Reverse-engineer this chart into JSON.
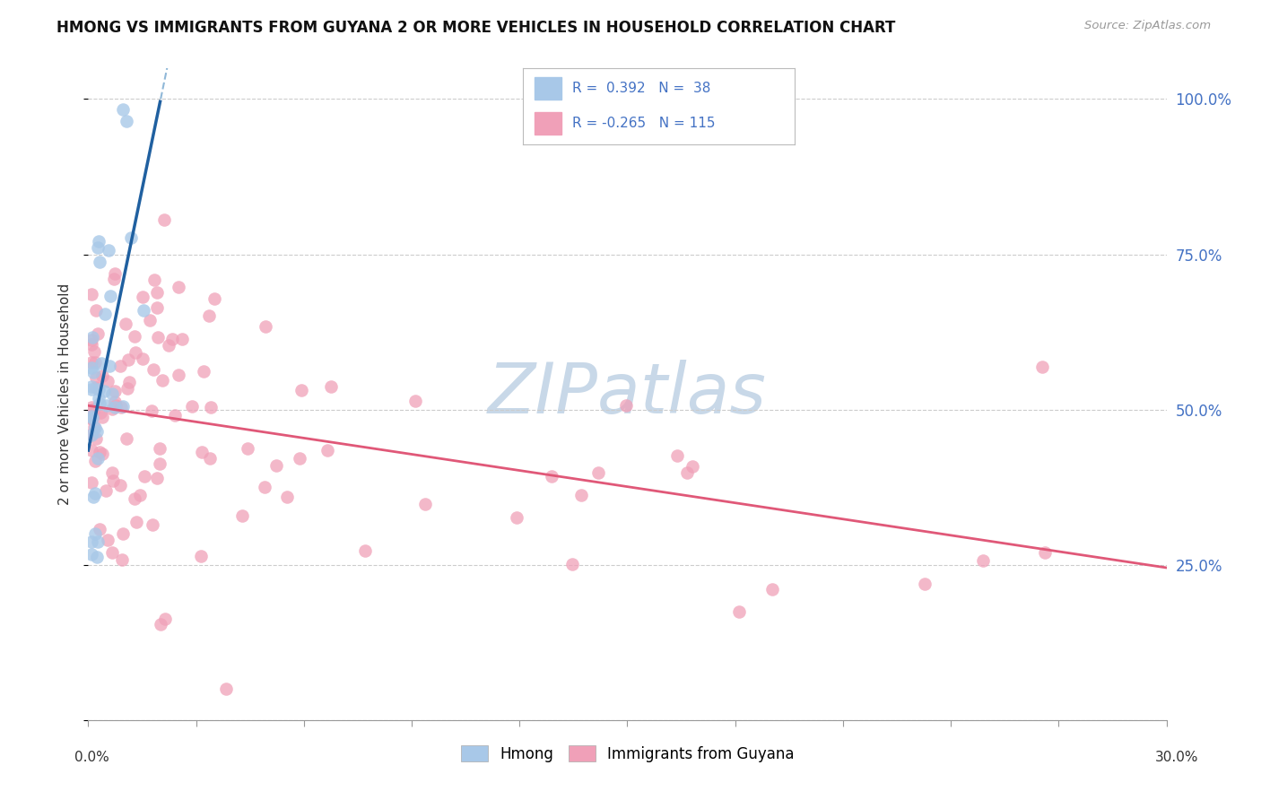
{
  "title": "HMONG VS IMMIGRANTS FROM GUYANA 2 OR MORE VEHICLES IN HOUSEHOLD CORRELATION CHART",
  "source": "Source: ZipAtlas.com",
  "ylabel": "2 or more Vehicles in Household",
  "blue_color": "#A8C8E8",
  "blue_line_solid": "#2060A0",
  "blue_line_dash": "#90B8D8",
  "pink_color": "#F0A0B8",
  "pink_line_color": "#E05878",
  "watermark_color": "#C8D8E8",
  "background_color": "#FFFFFF",
  "legend_text_color": "#4472C4",
  "legend_border_color": "#AAAAAA",
  "x_min": 0.0,
  "x_max": 0.3,
  "y_min": 0.0,
  "y_max": 1.05,
  "guyana_line_x0": 0.0,
  "guyana_line_y0": 0.5,
  "guyana_line_x1": 0.3,
  "guyana_line_y1": 0.24,
  "hmong_line_x0": 0.0,
  "hmong_line_y0": 0.48,
  "hmong_line_x1": 0.022,
  "hmong_line_y1": 0.97
}
